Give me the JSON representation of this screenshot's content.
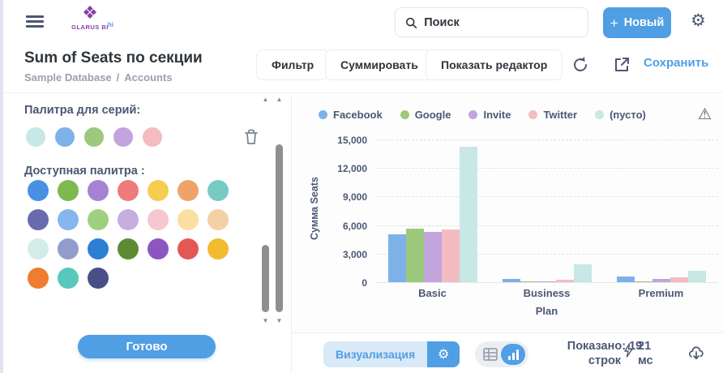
{
  "topbar": {
    "logo_text": "GLARUS BI",
    "logo_hi": "hi",
    "search_placeholder": "Поиск",
    "new_button": "Новый"
  },
  "header": {
    "title": "Sum of Seats по секции",
    "breadcrumb_db": "Sample Database",
    "breadcrumb_sep": "/",
    "breadcrumb_table": "Accounts",
    "filter_button": "Фильтр",
    "summarize_button": "Суммировать",
    "editor_button": "Показать редактор",
    "save_link": "Сохранить"
  },
  "sidebar": {
    "series_palette_label": "Палитра для серий:",
    "series_colors": [
      "#c7e8e4",
      "#7cb2e8",
      "#9cc97c",
      "#c2a5dc",
      "#f2bcc0"
    ],
    "available_palette_label": "Доступная палитра :",
    "palette_colors": [
      "#4a90e2",
      "#7eb84e",
      "#a583d2",
      "#ee7c7c",
      "#f7cd51",
      "#f0a368",
      "#76ccc4",
      "#6a6bad",
      "#85b7ed",
      "#9fd07f",
      "#c6aee0",
      "#f6c7cf",
      "#fadfa2",
      "#f5cfa6",
      "#d4ece7",
      "#939dc9",
      "#2d7fd6",
      "#5d8b34",
      "#8c55c1",
      "#e35755",
      "#f2bb30",
      "#ee7d31",
      "#58c7bc",
      "#4a4e87"
    ],
    "done_button": "Готово"
  },
  "chart_data": {
    "type": "bar",
    "categories": [
      "Basic",
      "Business",
      "Premium"
    ],
    "series": [
      {
        "name": "Facebook",
        "color": "#7cb2e8",
        "values": [
          5000,
          350,
          600
        ]
      },
      {
        "name": "Google",
        "color": "#9cc97c",
        "values": [
          5600,
          70,
          100
        ]
      },
      {
        "name": "Invite",
        "color": "#c2a5dc",
        "values": [
          5300,
          70,
          350
        ]
      },
      {
        "name": "Twitter",
        "color": "#f2bcc0",
        "values": [
          5500,
          280,
          550
        ]
      },
      {
        "name": "(пусто)",
        "color": "#c7e8e4",
        "values": [
          14200,
          1900,
          1200
        ]
      }
    ],
    "xlabel": "Plan",
    "ylabel": "Сумма Seats",
    "ylim": [
      0,
      15000
    ],
    "yticks": [
      0,
      3000,
      6000,
      9000,
      12000,
      15000
    ],
    "grid": "dashed-horizontal",
    "legend_position": "top"
  },
  "footer": {
    "visualization_button": "Визуализация",
    "rows_line1": "Показано: 19",
    "rows_line2": "строк",
    "time_value": "21",
    "time_unit": "мс"
  },
  "colors": {
    "accent": "#509ee3",
    "text_dark": "#2e353b",
    "text_slate": "#4c5773",
    "text_muted": "#9aa0af"
  }
}
